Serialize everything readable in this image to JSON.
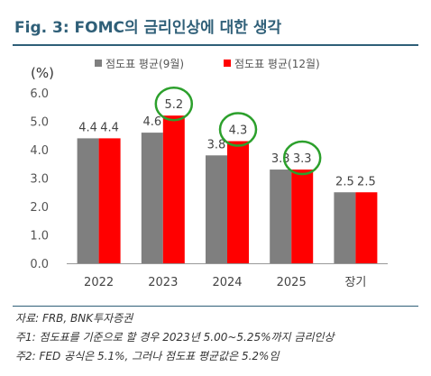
{
  "figure": {
    "title": "Fig. 3: FOMC의 금리인상에 대한 생각"
  },
  "chart_data": {
    "type": "bar",
    "unit_label": "(%)",
    "categories": [
      "2022",
      "2023",
      "2024",
      "2025",
      "장기"
    ],
    "series": [
      {
        "name": "점도표 평균(9월)",
        "values": [
          4.4,
          4.6,
          3.8,
          3.3,
          2.5
        ],
        "color": "#7f7f7f"
      },
      {
        "name": "점도표 평균(12월)",
        "values": [
          4.4,
          5.2,
          4.3,
          3.3,
          2.5
        ],
        "color": "#ff0000"
      }
    ],
    "ylim": [
      0.0,
      6.0
    ],
    "yticks": [
      "0.0",
      "1.0",
      "2.0",
      "3.0",
      "4.0",
      "5.0",
      "6.0"
    ],
    "legend_position": "top",
    "highlight_color": "#2ca02c",
    "highlighted": [
      {
        "category": "2023",
        "series": "점도표 평균(12월)"
      },
      {
        "category": "2024",
        "series": "점도표 평균(12월)"
      },
      {
        "category": "2025",
        "series": "점도표 평균(12월)"
      }
    ]
  },
  "notes": {
    "source": "자료: FRB, BNK투자증권",
    "note1": "주1: 점도표를 기준으로 할 경우 2023년 5.00~5.25%까지 금리인상",
    "note2": "주2: FED 공식은 5.1%, 그러나 점도표 평균값은 5.2%임"
  }
}
